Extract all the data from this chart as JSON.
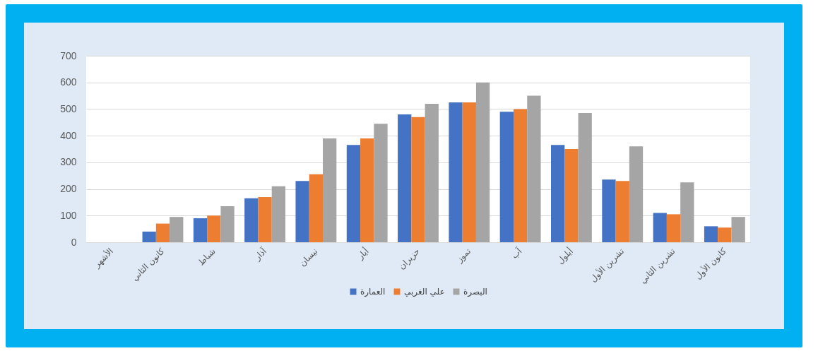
{
  "chart_data": {
    "type": "bar",
    "categories": [
      "الأشهر",
      "كانون الثاني",
      "شباط",
      "آذار",
      "نيسان",
      "أيار",
      "حزيران",
      "تموز",
      "آب",
      "أيلول",
      "تشرين الأول",
      "تشرين الثاني",
      "كانون الأول"
    ],
    "series": [
      {
        "name": "العمارة",
        "color": "#4472c4",
        "values": [
          null,
          40,
          90,
          165,
          230,
          365,
          480,
          525,
          490,
          365,
          235,
          110,
          60
        ]
      },
      {
        "name": "علي الغربي",
        "color": "#ed7d31",
        "values": [
          null,
          70,
          100,
          170,
          255,
          390,
          470,
          525,
          500,
          350,
          230,
          105,
          55
        ]
      },
      {
        "name": "البصرة",
        "color": "#a5a5a5",
        "values": [
          null,
          95,
          135,
          210,
          390,
          445,
          520,
          600,
          550,
          485,
          360,
          225,
          95
        ]
      }
    ],
    "ylim": [
      0,
      700
    ],
    "yticks": [
      0,
      100,
      200,
      300,
      400,
      500,
      600,
      700
    ],
    "grid": "y",
    "legend": "bottom"
  }
}
